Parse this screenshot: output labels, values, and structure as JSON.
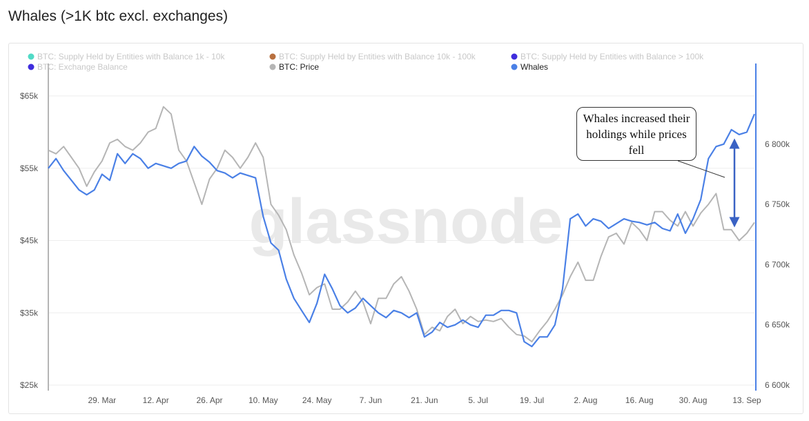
{
  "page": {
    "title": "Whales (>1K btc excl. exchanges)"
  },
  "annotation": {
    "text": "Whales increased their holdings while prices fell"
  },
  "watermark": "glassnode",
  "chart_data": {
    "type": "line",
    "title": "Whales (>1K btc excl. exchanges)",
    "legend": [
      {
        "label": "BTC: Supply Held by Entities with Balance 1k - 10k",
        "color": "#3ed6c0",
        "active": false
      },
      {
        "label": "BTC: Supply Held by Entities with Balance 10k - 100k",
        "color": "#b0612a",
        "active": false
      },
      {
        "label": "BTC: Supply Held by Entities with Balance > 100k",
        "color": "#2a16d9",
        "active": false
      },
      {
        "label": "BTC: Exchange Balance",
        "color": "#2a16d9",
        "active": false
      },
      {
        "label": "BTC: Price",
        "color": "#b5b5b5",
        "active": true
      },
      {
        "label": "Whales",
        "color": "#4a80e6",
        "active": true
      }
    ],
    "legend_position": "top",
    "grid": "horizontal",
    "x_ticks": [
      "29. Mar",
      "12. Apr",
      "26. Apr",
      "10. May",
      "24. May",
      "7. Jun",
      "21. Jun",
      "5. Jul",
      "19. Jul",
      "2. Aug",
      "16. Aug",
      "30. Aug",
      "13. Sep"
    ],
    "y_left": {
      "label": "",
      "ticks": [
        "$25k",
        "$35k",
        "$45k",
        "$55k",
        "$65k"
      ],
      "range": [
        25000,
        65000
      ]
    },
    "y_right": {
      "label": "",
      "ticks": [
        "6 600k",
        "6 650k",
        "6 700k",
        "6 750k",
        "6 800k"
      ],
      "range": [
        6600000,
        6840000
      ]
    },
    "x_range": [
      "2021-03-15",
      "2021-09-15"
    ],
    "series": [
      {
        "name": "BTC: Price",
        "axis": "left",
        "color": "#b5b5b5",
        "points": [
          [
            "2021-03-15",
            57500
          ],
          [
            "2021-03-17",
            57000
          ],
          [
            "2021-03-19",
            58000
          ],
          [
            "2021-03-21",
            56500
          ],
          [
            "2021-03-23",
            55000
          ],
          [
            "2021-03-25",
            52500
          ],
          [
            "2021-03-27",
            54500
          ],
          [
            "2021-03-29",
            56000
          ],
          [
            "2021-03-31",
            58500
          ],
          [
            "2021-04-02",
            59000
          ],
          [
            "2021-04-04",
            58000
          ],
          [
            "2021-04-06",
            57500
          ],
          [
            "2021-04-08",
            58500
          ],
          [
            "2021-04-10",
            60000
          ],
          [
            "2021-04-12",
            60500
          ],
          [
            "2021-04-14",
            63500
          ],
          [
            "2021-04-16",
            62500
          ],
          [
            "2021-04-18",
            57500
          ],
          [
            "2021-04-20",
            56000
          ],
          [
            "2021-04-22",
            53000
          ],
          [
            "2021-04-24",
            50000
          ],
          [
            "2021-04-26",
            53500
          ],
          [
            "2021-04-28",
            55000
          ],
          [
            "2021-04-30",
            57500
          ],
          [
            "2021-05-02",
            56500
          ],
          [
            "2021-05-04",
            55000
          ],
          [
            "2021-05-06",
            56500
          ],
          [
            "2021-05-08",
            58500
          ],
          [
            "2021-05-10",
            56500
          ],
          [
            "2021-05-12",
            50000
          ],
          [
            "2021-05-14",
            48500
          ],
          [
            "2021-05-16",
            46500
          ],
          [
            "2021-05-18",
            43000
          ],
          [
            "2021-05-20",
            40500
          ],
          [
            "2021-05-22",
            37500
          ],
          [
            "2021-05-24",
            38500
          ],
          [
            "2021-05-26",
            39000
          ],
          [
            "2021-05-28",
            35500
          ],
          [
            "2021-05-30",
            35500
          ],
          [
            "2021-06-01",
            36500
          ],
          [
            "2021-06-03",
            38000
          ],
          [
            "2021-06-05",
            36500
          ],
          [
            "2021-06-07",
            33500
          ],
          [
            "2021-06-09",
            37000
          ],
          [
            "2021-06-11",
            37000
          ],
          [
            "2021-06-13",
            39000
          ],
          [
            "2021-06-15",
            40000
          ],
          [
            "2021-06-17",
            38000
          ],
          [
            "2021-06-19",
            35500
          ],
          [
            "2021-06-21",
            32000
          ],
          [
            "2021-06-23",
            33000
          ],
          [
            "2021-06-25",
            32500
          ],
          [
            "2021-06-27",
            34500
          ],
          [
            "2021-06-29",
            35500
          ],
          [
            "2021-07-01",
            33500
          ],
          [
            "2021-07-03",
            34500
          ],
          [
            "2021-07-05",
            33800
          ],
          [
            "2021-07-07",
            34000
          ],
          [
            "2021-07-09",
            33800
          ],
          [
            "2021-07-11",
            34200
          ],
          [
            "2021-07-13",
            33000
          ],
          [
            "2021-07-15",
            32000
          ],
          [
            "2021-07-17",
            31800
          ],
          [
            "2021-07-19",
            31000
          ],
          [
            "2021-07-21",
            32500
          ],
          [
            "2021-07-23",
            33800
          ],
          [
            "2021-07-25",
            35500
          ],
          [
            "2021-07-27",
            37500
          ],
          [
            "2021-07-29",
            40000
          ],
          [
            "2021-07-31",
            42000
          ],
          [
            "2021-08-02",
            39500
          ],
          [
            "2021-08-04",
            39500
          ],
          [
            "2021-08-06",
            42800
          ],
          [
            "2021-08-08",
            45500
          ],
          [
            "2021-08-10",
            46000
          ],
          [
            "2021-08-12",
            44500
          ],
          [
            "2021-08-14",
            47500
          ],
          [
            "2021-08-16",
            46500
          ],
          [
            "2021-08-18",
            45000
          ],
          [
            "2021-08-20",
            49000
          ],
          [
            "2021-08-22",
            49000
          ],
          [
            "2021-08-24",
            47800
          ],
          [
            "2021-08-26",
            47000
          ],
          [
            "2021-08-28",
            49000
          ],
          [
            "2021-08-30",
            47000
          ],
          [
            "2021-09-01",
            48800
          ],
          [
            "2021-09-03",
            50000
          ],
          [
            "2021-09-05",
            51500
          ],
          [
            "2021-09-07",
            46500
          ],
          [
            "2021-09-09",
            46500
          ],
          [
            "2021-09-11",
            45000
          ],
          [
            "2021-09-13",
            46000
          ],
          [
            "2021-09-15",
            47500
          ]
        ]
      },
      {
        "name": "Whales",
        "axis": "right",
        "color": "#4a80e6",
        "points": [
          [
            "2021-03-15",
            6780000
          ],
          [
            "2021-03-17",
            6788000
          ],
          [
            "2021-03-19",
            6778000
          ],
          [
            "2021-03-21",
            6770000
          ],
          [
            "2021-03-23",
            6762000
          ],
          [
            "2021-03-25",
            6758000
          ],
          [
            "2021-03-27",
            6762000
          ],
          [
            "2021-03-29",
            6775000
          ],
          [
            "2021-03-31",
            6770000
          ],
          [
            "2021-04-02",
            6792000
          ],
          [
            "2021-04-04",
            6784000
          ],
          [
            "2021-04-06",
            6792000
          ],
          [
            "2021-04-08",
            6788000
          ],
          [
            "2021-04-10",
            6780000
          ],
          [
            "2021-04-12",
            6784000
          ],
          [
            "2021-04-14",
            6782000
          ],
          [
            "2021-04-16",
            6780000
          ],
          [
            "2021-04-18",
            6784000
          ],
          [
            "2021-04-20",
            6786000
          ],
          [
            "2021-04-22",
            6798000
          ],
          [
            "2021-04-24",
            6790000
          ],
          [
            "2021-04-26",
            6785000
          ],
          [
            "2021-04-28",
            6778000
          ],
          [
            "2021-04-30",
            6776000
          ],
          [
            "2021-05-02",
            6772000
          ],
          [
            "2021-05-04",
            6776000
          ],
          [
            "2021-05-06",
            6774000
          ],
          [
            "2021-05-08",
            6772000
          ],
          [
            "2021-05-10",
            6740000
          ],
          [
            "2021-05-12",
            6718000
          ],
          [
            "2021-05-14",
            6712000
          ],
          [
            "2021-05-16",
            6688000
          ],
          [
            "2021-05-18",
            6672000
          ],
          [
            "2021-05-20",
            6662000
          ],
          [
            "2021-05-22",
            6652000
          ],
          [
            "2021-05-24",
            6668000
          ],
          [
            "2021-05-26",
            6692000
          ],
          [
            "2021-05-28",
            6680000
          ],
          [
            "2021-05-30",
            6666000
          ],
          [
            "2021-06-01",
            6660000
          ],
          [
            "2021-06-03",
            6664000
          ],
          [
            "2021-06-05",
            6672000
          ],
          [
            "2021-06-07",
            6666000
          ],
          [
            "2021-06-09",
            6660000
          ],
          [
            "2021-06-11",
            6656000
          ],
          [
            "2021-06-13",
            6662000
          ],
          [
            "2021-06-15",
            6660000
          ],
          [
            "2021-06-17",
            6656000
          ],
          [
            "2021-06-19",
            6660000
          ],
          [
            "2021-06-21",
            6640000
          ],
          [
            "2021-06-23",
            6644000
          ],
          [
            "2021-06-25",
            6652000
          ],
          [
            "2021-06-27",
            6648000
          ],
          [
            "2021-06-29",
            6650000
          ],
          [
            "2021-07-01",
            6654000
          ],
          [
            "2021-07-03",
            6650000
          ],
          [
            "2021-07-05",
            6648000
          ],
          [
            "2021-07-07",
            6658000
          ],
          [
            "2021-07-09",
            6658000
          ],
          [
            "2021-07-11",
            6662000
          ],
          [
            "2021-07-13",
            6662000
          ],
          [
            "2021-07-15",
            6660000
          ],
          [
            "2021-07-17",
            6636000
          ],
          [
            "2021-07-19",
            6632000
          ],
          [
            "2021-07-21",
            6640000
          ],
          [
            "2021-07-23",
            6640000
          ],
          [
            "2021-07-25",
            6650000
          ],
          [
            "2021-07-27",
            6680000
          ],
          [
            "2021-07-29",
            6738000
          ],
          [
            "2021-07-31",
            6742000
          ],
          [
            "2021-08-02",
            6732000
          ],
          [
            "2021-08-04",
            6738000
          ],
          [
            "2021-08-06",
            6736000
          ],
          [
            "2021-08-08",
            6730000
          ],
          [
            "2021-08-10",
            6734000
          ],
          [
            "2021-08-12",
            6738000
          ],
          [
            "2021-08-14",
            6736000
          ],
          [
            "2021-08-16",
            6735000
          ],
          [
            "2021-08-18",
            6733000
          ],
          [
            "2021-08-20",
            6735000
          ],
          [
            "2021-08-22",
            6730000
          ],
          [
            "2021-08-24",
            6728000
          ],
          [
            "2021-08-26",
            6742000
          ],
          [
            "2021-08-28",
            6726000
          ],
          [
            "2021-08-30",
            6738000
          ],
          [
            "2021-09-01",
            6754000
          ],
          [
            "2021-09-03",
            6788000
          ],
          [
            "2021-09-05",
            6798000
          ],
          [
            "2021-09-07",
            6800000
          ],
          [
            "2021-09-09",
            6812000
          ],
          [
            "2021-09-11",
            6808000
          ],
          [
            "2021-09-13",
            6810000
          ],
          [
            "2021-09-15",
            6825000
          ]
        ]
      }
    ]
  }
}
